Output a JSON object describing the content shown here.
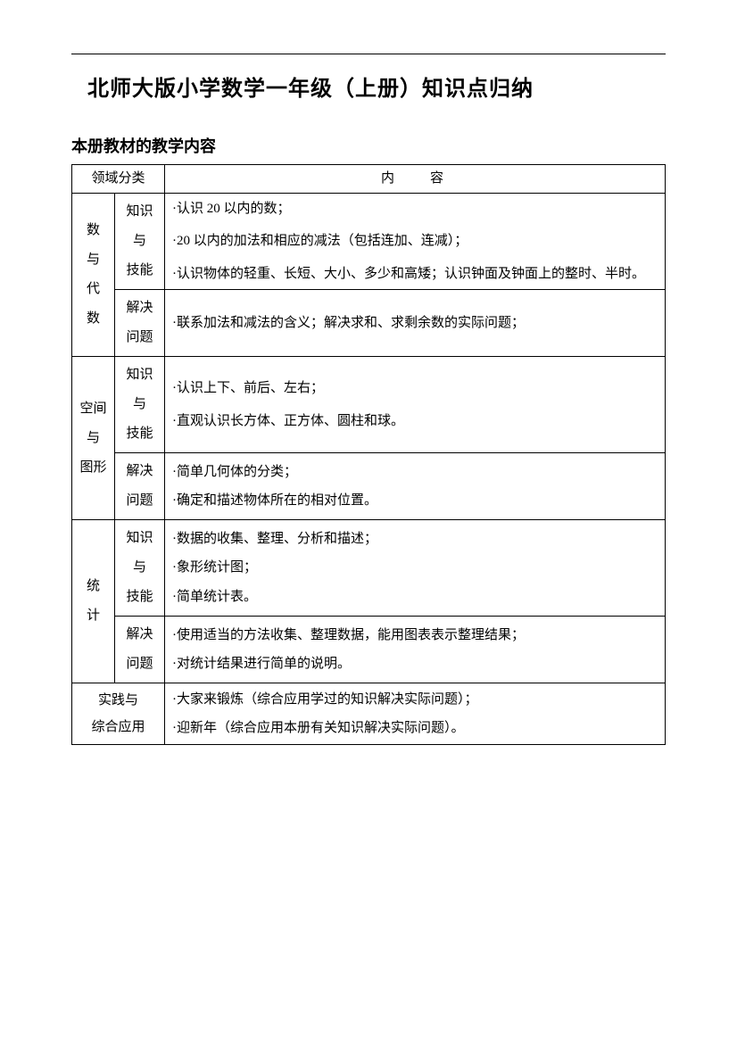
{
  "title": "北师大版小学数学一年级（上册）知识点归纳",
  "subtitle": "本册教材的教学内容",
  "header": {
    "domain": "领域分类",
    "content": "内容"
  },
  "rows": {
    "r1": {
      "domain": "数与代数",
      "sub1": "知识与技能",
      "c1a": "·认识 20 以内的数；",
      "c1b": "·20 以内的加法和相应的减法（包括连加、连减）；",
      "c1c": "·认识物体的轻重、长短、大小、多少和高矮；认识钟面及钟面上的整时、半时。",
      "sub2": "解决问题",
      "c2a": "·联系加法和减法的含义；解决求和、求剩余数的实际问题；"
    },
    "r2": {
      "domain": "空间与图形",
      "sub1": "知识与技能",
      "c1a": "·认识上下、前后、左右；",
      "c1b": "·直观认识长方体、正方体、圆柱和球。",
      "sub2": "解决问题",
      "c2a": "·简单几何体的分类；",
      "c2b": "·确定和描述物体所在的相对位置。"
    },
    "r3": {
      "domain": "统计",
      "sub1": "知识与技能",
      "c1a": "·数据的收集、整理、分析和描述；",
      "c1b": "·象形统计图；",
      "c1c": "·简单统计表。",
      "sub2": "解决问题",
      "c2a": "·使用适当的方法收集、整理数据，能用图表表示整理结果；",
      "c2b": "·对统计结果进行简单的说明。"
    },
    "r4": {
      "domain": "实践与综合应用",
      "c1a": "·大家来锻炼（综合应用学过的知识解决实际问题）；",
      "c1b": "·迎新年（综合应用本册有关知识解决实际问题）。"
    }
  }
}
